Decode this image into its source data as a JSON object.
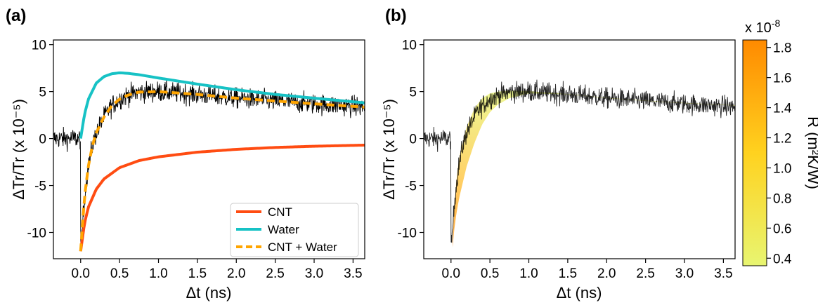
{
  "panels": {
    "a_label": "(a)",
    "b_label": "(b)"
  },
  "colorbar": {
    "multiplier": "x 10",
    "multiplier_exp": "-8",
    "label": "R (m²K/W)",
    "ticks": [
      "0.4",
      "0.6",
      "0.8",
      "1.0",
      "1.2",
      "1.4",
      "1.6",
      "1.8"
    ],
    "range": [
      0.35,
      1.85
    ],
    "color_low": "#e8f571",
    "color_mid": "#ffd21f",
    "color_high": "#ff8a00"
  },
  "colors": {
    "cnt": "#ff4c12",
    "water": "#17c2c5",
    "fit": "#ffa500",
    "data": "#000000"
  },
  "chart_data": [
    {
      "type": "line",
      "panel": "(a)",
      "xlabel": "Δt (ns)",
      "ylabel": "ΔTr/Tr (x 10⁻⁵)",
      "xlim": [
        -0.35,
        3.65
      ],
      "ylim": [
        -12.8,
        10.5
      ],
      "xticks": [
        "0.0",
        "0.5",
        "1.0",
        "1.5",
        "2.0",
        "2.5",
        "3.0",
        "3.5"
      ],
      "yticks": [
        "10",
        "5",
        "0",
        "-5",
        "-10"
      ],
      "legend_position": "bottom-right",
      "legend": [
        "CNT",
        "Water",
        "CNT + Water"
      ],
      "series": [
        {
          "name": "CNT",
          "style": "solid",
          "x": [
            0.0,
            0.05,
            0.1,
            0.2,
            0.3,
            0.5,
            0.75,
            1.0,
            1.5,
            2.0,
            2.5,
            3.0,
            3.65
          ],
          "y": [
            -12.0,
            -9.0,
            -7.3,
            -5.4,
            -4.3,
            -3.1,
            -2.35,
            -1.95,
            -1.45,
            -1.15,
            -0.95,
            -0.82,
            -0.7
          ]
        },
        {
          "name": "Water",
          "style": "solid",
          "x": [
            0.0,
            0.05,
            0.1,
            0.2,
            0.3,
            0.4,
            0.5,
            0.6,
            0.75,
            1.0,
            1.5,
            2.0,
            2.5,
            3.0,
            3.65
          ],
          "y": [
            0.0,
            2.6,
            4.2,
            5.9,
            6.6,
            6.9,
            7.0,
            6.95,
            6.8,
            6.45,
            5.8,
            5.2,
            4.7,
            4.3,
            3.8
          ]
        },
        {
          "name": "CNT + Water",
          "style": "dashed",
          "x": [
            0.0,
            0.05,
            0.1,
            0.15,
            0.2,
            0.3,
            0.4,
            0.5,
            0.6,
            0.75,
            1.0,
            1.5,
            2.0,
            2.5,
            3.0,
            3.65
          ],
          "y": [
            -12.0,
            -6.2,
            -2.9,
            -0.8,
            0.6,
            2.3,
            3.5,
            4.2,
            4.6,
            4.95,
            5.0,
            4.7,
            4.3,
            4.0,
            3.7,
            3.35
          ]
        }
      ]
    },
    {
      "type": "line",
      "panel": "(b)",
      "xlabel": "Δt (ns)",
      "ylabel": "ΔTr/Tr (x 10⁻⁵)",
      "xlim": [
        -0.35,
        3.65
      ],
      "ylim": [
        -12.8,
        10.5
      ],
      "xticks": [
        "0.0",
        "0.5",
        "1.0",
        "1.5",
        "2.0",
        "2.5",
        "3.0",
        "3.5"
      ],
      "yticks": [
        "10",
        "5",
        "0",
        "-5",
        "-10"
      ],
      "series": [
        {
          "name": "",
          "style": "band",
          "x": [
            0.02,
            0.05,
            0.1,
            0.2,
            0.3,
            0.4,
            0.5,
            0.6,
            0.75,
            1.0,
            1.5,
            2.0,
            2.5,
            3.0,
            3.65
          ],
          "y_low": [
            -11.6,
            -9.0,
            -6.5,
            -3.0,
            -0.5,
            1.5,
            2.8,
            3.6,
            4.3,
            4.8,
            4.7,
            4.3,
            4.0,
            3.75,
            3.5
          ],
          "y_high": [
            -11.0,
            -6.0,
            -2.2,
            1.2,
            3.2,
            4.3,
            4.8,
            5.0,
            5.1,
            5.05,
            4.75,
            4.35,
            4.05,
            3.8,
            3.55
          ]
        }
      ]
    }
  ]
}
